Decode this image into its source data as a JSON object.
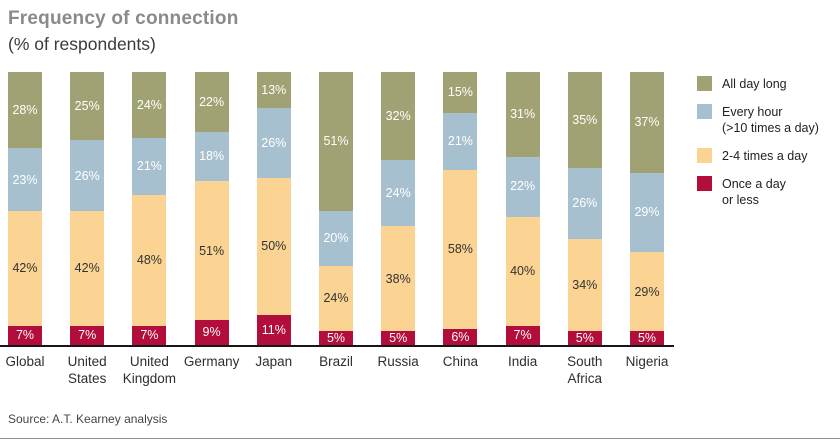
{
  "header": {
    "title": "Frequency of connection",
    "subtitle": "(% of respondents)"
  },
  "chart_data": {
    "type": "bar",
    "stacked": true,
    "title": "Frequency of connection",
    "subtitle": "(% of respondents)",
    "value_suffix": "%",
    "ylim": [
      0,
      100
    ],
    "grid": false,
    "legend_position": "right",
    "categories": [
      "Global",
      "United States",
      "United Kingdom",
      "Germany",
      "Japan",
      "Brazil",
      "Russia",
      "China",
      "India",
      "South Africa",
      "Nigeria"
    ],
    "series": [
      {
        "name": "Once a day or less",
        "color": "#b30d3c",
        "label_color": "#ffffff",
        "values": [
          7,
          7,
          7,
          9,
          11,
          5,
          5,
          6,
          7,
          5,
          5
        ]
      },
      {
        "name": "2-4 times a day",
        "color": "#fbd392",
        "label_color": "#333333",
        "values": [
          42,
          42,
          48,
          51,
          50,
          24,
          38,
          58,
          40,
          34,
          29
        ]
      },
      {
        "name": "Every hour (>10 times a day)",
        "color": "#a7c0d0",
        "label_color": "#ffffff",
        "values": [
          23,
          26,
          21,
          18,
          26,
          20,
          24,
          21,
          22,
          26,
          29
        ]
      },
      {
        "name": "All day long",
        "color": "#a1a273",
        "label_color": "#ffffff",
        "values": [
          28,
          25,
          24,
          22,
          13,
          51,
          32,
          15,
          31,
          35,
          37
        ]
      }
    ],
    "legend": [
      {
        "lines": [
          "All day long"
        ],
        "color": "#a1a273"
      },
      {
        "lines": [
          "Every hour",
          "(>10 times a day)"
        ],
        "color": "#a7c0d0"
      },
      {
        "lines": [
          "2-4 times a day"
        ],
        "color": "#fbd392"
      },
      {
        "lines": [
          "Once a day",
          "or less"
        ],
        "color": "#b30d3c"
      }
    ]
  },
  "footer": {
    "source": "Source: A.T. Kearney analysis"
  }
}
